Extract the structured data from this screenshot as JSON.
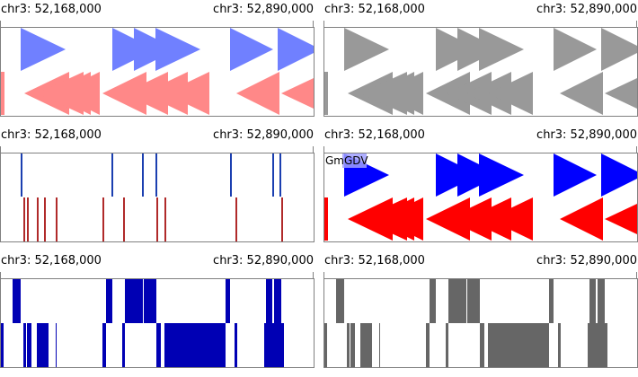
{
  "coords": {
    "start": "chr3: 52,168,000",
    "end": "chr3: 52,890,000"
  },
  "colors": {
    "p1_top": "#7080ff",
    "p1_bottom": "#ff8888",
    "p2": "#999999",
    "p3_top": "#1b3fb0",
    "p3_bottom": "#b02a2a",
    "p4_top": "#0000ff",
    "p4_bottom": "#ff0000",
    "p5": "#0000b4",
    "p6": "#666666"
  },
  "panels": [
    {
      "id": "p1",
      "style": "arrows",
      "icon": "arrow-glyph-track"
    },
    {
      "id": "p2",
      "style": "arrows",
      "icon": "arrow-glyph-track"
    },
    {
      "id": "p3",
      "style": "lines",
      "icon": "tick-line-track"
    },
    {
      "id": "p4",
      "style": "arrows",
      "icon": "arrow-glyph-track",
      "feature_label": "GmGDV"
    },
    {
      "id": "p5",
      "style": "blocks",
      "icon": "block-density-track"
    },
    {
      "id": "p6",
      "style": "blocks",
      "icon": "block-density-track"
    }
  ]
}
